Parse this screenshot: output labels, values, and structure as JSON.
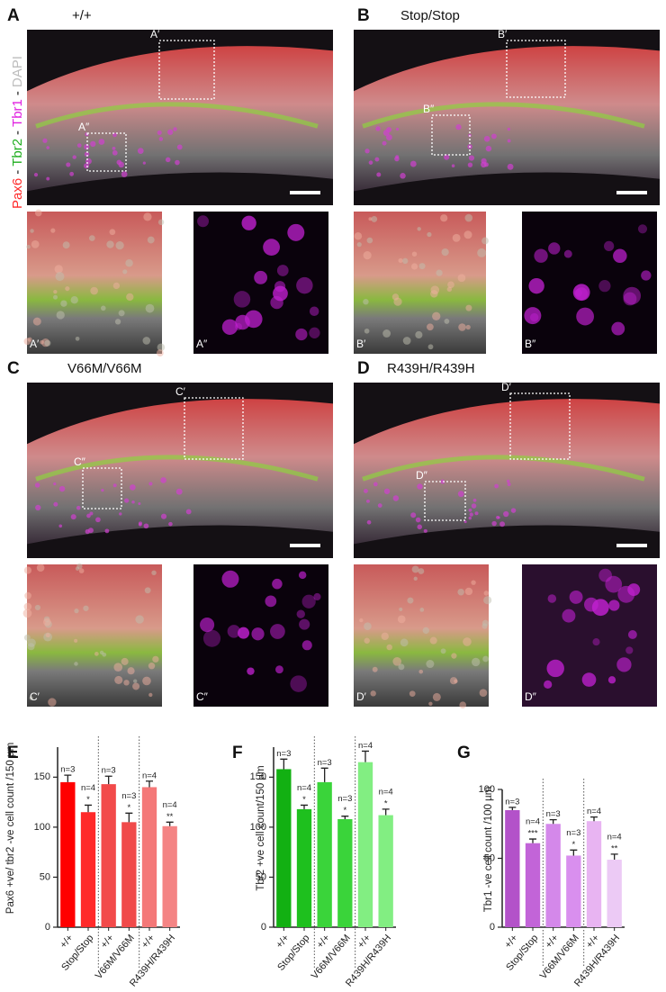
{
  "figure": {
    "stain_label": [
      {
        "text": "Pax6",
        "color": "#ff2a2a"
      },
      {
        "text": "-",
        "color": "#111111"
      },
      {
        "text": "Tbr2",
        "color": "#1fae1f"
      },
      {
        "text": "-",
        "color": "#111111"
      },
      {
        "text": "Tbr1",
        "color": "#e020e0"
      },
      {
        "text": "-",
        "color": "#111111"
      },
      {
        "text": "DAPI",
        "color": "#bdbdbd"
      }
    ],
    "image_panels": [
      {
        "letter": "A",
        "genotype": "+/+",
        "prime": "A′",
        "double_prime": "A″"
      },
      {
        "letter": "B",
        "genotype": "Stop/Stop",
        "prime": "B′",
        "double_prime": "B″"
      },
      {
        "letter": "C",
        "genotype": "V66M/V66M",
        "prime": "C′",
        "double_prime": "C″"
      },
      {
        "letter": "D",
        "genotype": "R439H/R439H",
        "prime": "D′",
        "double_prime": "D″"
      }
    ]
  },
  "chart_data": [
    {
      "type": "bar",
      "panel": "E",
      "y_label": "Pax6 +ve/ tbr2 -ve cell count /150 µm",
      "categories": [
        "+/+",
        "Stop/Stop",
        "+/+",
        "V66M/V66M",
        "+/+",
        "R439H/R439H"
      ],
      "values": [
        145,
        115,
        143,
        105,
        140,
        101
      ],
      "errors": [
        7,
        7,
        8,
        9,
        6,
        4
      ],
      "colors": [
        "#ff0000",
        "#ff2a2a",
        "#f24a4a",
        "#f04a4a",
        "#f47878",
        "#f48484"
      ],
      "n_labels": [
        "n=3",
        "n=4",
        "n=3",
        "n=3",
        "n=4",
        "n=4"
      ],
      "significance": [
        null,
        "*",
        null,
        "*",
        null,
        "**"
      ],
      "ylim": [
        0,
        180
      ],
      "yticks": [
        0,
        50,
        100,
        150
      ]
    },
    {
      "type": "bar",
      "panel": "F",
      "y_label": "Tbr2 +ve cell count/150 µm",
      "categories": [
        "+/+",
        "Stop/Stop",
        "+/+",
        "V66M/V66M",
        "+/+",
        "R439H/R439H"
      ],
      "values": [
        158,
        118,
        145,
        108,
        165,
        112
      ],
      "errors": [
        10,
        4,
        14,
        3,
        11,
        6
      ],
      "colors": [
        "#12b012",
        "#1ec01e",
        "#3ad43a",
        "#3ad43a",
        "#82ee82",
        "#82ee82"
      ],
      "n_labels": [
        "n=3",
        "n=4",
        "n=3",
        "n=3",
        "n=4",
        "n=4"
      ],
      "significance": [
        null,
        "*",
        null,
        "*",
        null,
        "*"
      ],
      "ylim": [
        0,
        180
      ],
      "yticks": [
        0,
        50,
        100,
        150
      ]
    },
    {
      "type": "bar",
      "panel": "G",
      "y_label": "Tbr1 -ve cell count /100 µm",
      "categories": [
        "+/+",
        "Stop/Stop",
        "+/+",
        "V66M/V66M",
        "+/+",
        "R439H/R439H"
      ],
      "values": [
        85,
        61,
        75,
        52,
        77,
        49
      ],
      "errors": [
        2,
        3,
        3,
        4,
        3,
        4
      ],
      "colors": [
        "#b352c9",
        "#c264d8",
        "#d488ea",
        "#d98fee",
        "#e8b4f2",
        "#eccaf5"
      ],
      "n_labels": [
        "n=3",
        "n=4",
        "n=3",
        "n=3",
        "n=4",
        "n=4"
      ],
      "significance": [
        null,
        "***",
        null,
        "*",
        null,
        "**"
      ],
      "ylim": [
        0,
        100
      ],
      "yticks": [
        0,
        50,
        100
      ]
    }
  ]
}
